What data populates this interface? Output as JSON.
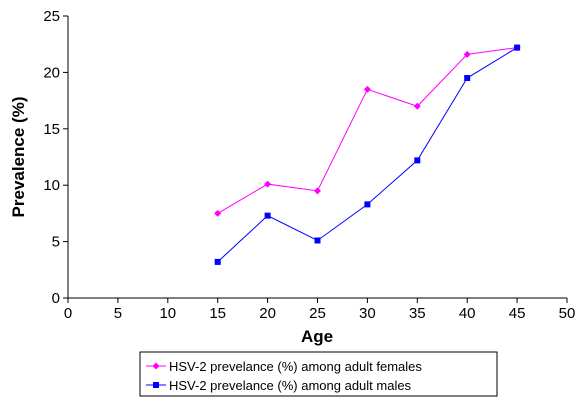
{
  "chart_data": {
    "type": "line",
    "title": "",
    "xlabel": "Age",
    "ylabel": "Prevalence (%)",
    "xlim": [
      0,
      50
    ],
    "ylim": [
      0,
      25
    ],
    "x_ticks": [
      0,
      5,
      10,
      15,
      20,
      25,
      30,
      35,
      40,
      45,
      50
    ],
    "y_ticks": [
      0,
      5,
      10,
      15,
      20,
      25
    ],
    "grid": false,
    "legend_position": "bottom",
    "x": [
      15,
      20,
      25,
      30,
      35,
      40,
      45
    ],
    "series": [
      {
        "name": "HSV-2 prevelance (%) among adult females",
        "color": "#ff00ff",
        "marker": "diamond",
        "values": [
          7.5,
          10.1,
          9.5,
          18.5,
          17.0,
          21.6,
          22.2
        ]
      },
      {
        "name": "HSV-2 prevelance (%) among adult males",
        "color": "#0000ff",
        "marker": "square",
        "values": [
          3.2,
          7.3,
          5.1,
          8.3,
          12.2,
          19.5,
          22.2
        ]
      }
    ]
  }
}
